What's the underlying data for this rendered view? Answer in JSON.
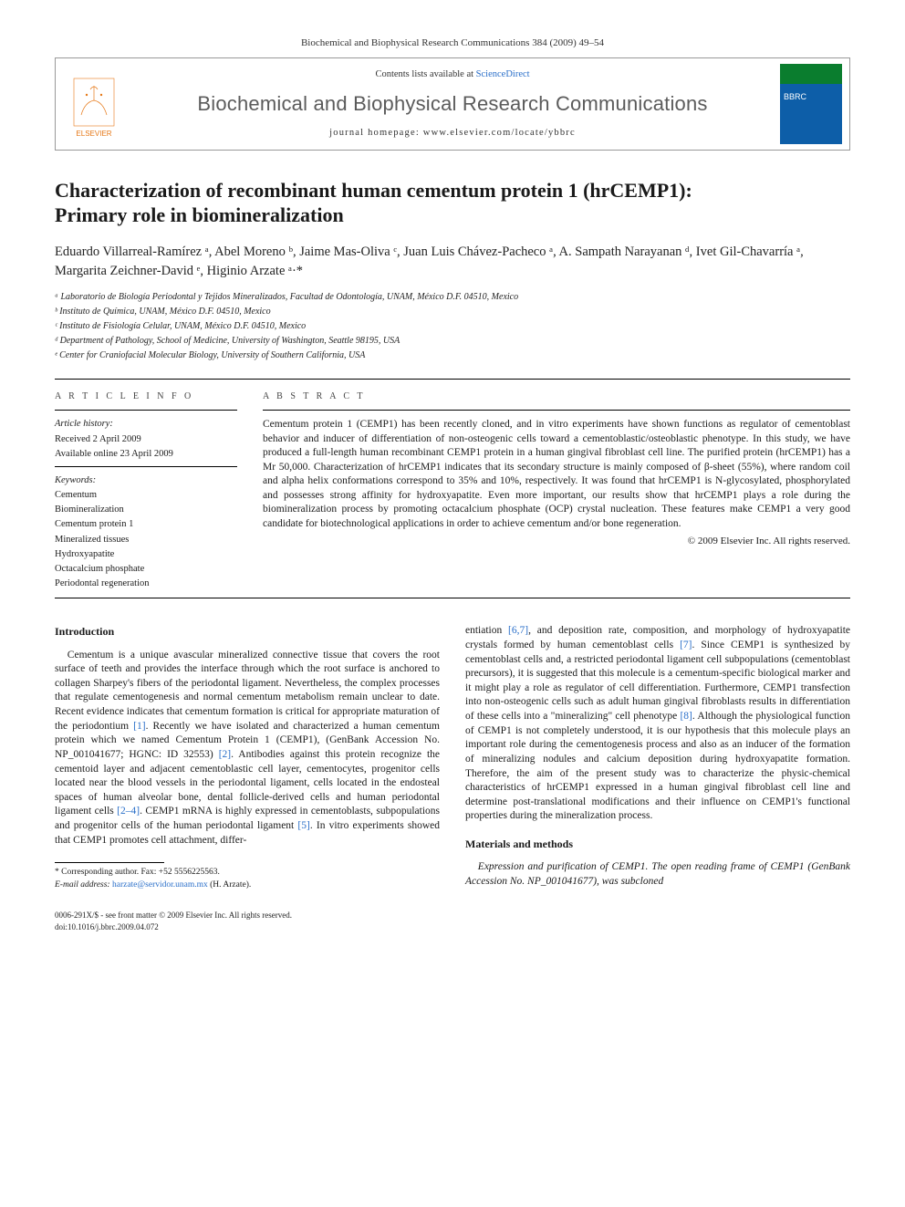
{
  "header": {
    "citation": "Biochemical and Biophysical Research Communications 384 (2009) 49–54",
    "contents_prefix": "Contents lists available at ",
    "contents_link": "ScienceDirect",
    "journal": "Biochemical and Biophysical Research Communications",
    "homepage_prefix": "journal homepage: ",
    "homepage": "www.elsevier.com/locate/ybbrc",
    "publisher": "ELSEVIER"
  },
  "article": {
    "title_line1": "Characterization of recombinant human cementum protein 1 (hrCEMP1):",
    "title_line2": "Primary role in biomineralization",
    "authors_html": "Eduardo Villarreal-Ramírez ᵃ, Abel Moreno ᵇ, Jaime Mas-Oliva ᶜ, Juan Luis Chávez-Pacheco ᵃ, A. Sampath Narayanan ᵈ, Ivet Gil-Chavarría ᵃ, Margarita Zeichner-David ᵉ, Higinio Arzate ᵃ·*",
    "affiliations": [
      "ᵃ Laboratorio de Biología Periodontal y Tejidos Mineralizados, Facultad de Odontología, UNAM, México D.F. 04510, Mexico",
      "ᵇ Instituto de Química, UNAM, México D.F. 04510, Mexico",
      "ᶜ Instituto de Fisiología Celular, UNAM, México D.F. 04510, Mexico",
      "ᵈ Department of Pathology, School of Medicine, University of Washington, Seattle 98195, USA",
      "ᵉ Center for Craniofacial Molecular Biology, University of Southern California, USA"
    ]
  },
  "info": {
    "head": "A R T I C L E   I N F O",
    "history_label": "Article history:",
    "received": "Received 2 April 2009",
    "available": "Available online 23 April 2009",
    "kw_label": "Keywords:",
    "keywords": [
      "Cementum",
      "Biomineralization",
      "Cementum protein 1",
      "Mineralized tissues",
      "Hydroxyapatite",
      "Octacalcium phosphate",
      "Periodontal regeneration"
    ]
  },
  "abstract": {
    "head": "A B S T R A C T",
    "text": "Cementum protein 1 (CEMP1) has been recently cloned, and in vitro experiments have shown functions as regulator of cementoblast behavior and inducer of differentiation of non-osteogenic cells toward a cementoblastic/osteoblastic phenotype. In this study, we have produced a full-length human recombinant CEMP1 protein in a human gingival fibroblast cell line. The purified protein (hrCEMP1) has a Mr 50,000. Characterization of hrCEMP1 indicates that its secondary structure is mainly composed of β-sheet (55%), where random coil and alpha helix conformations correspond to 35% and 10%, respectively. It was found that hrCEMP1 is N-glycosylated, phosphorylated and possesses strong affinity for hydroxyapatite. Even more important, our results show that hrCEMP1 plays a role during the biomineralization process by promoting octacalcium phosphate (OCP) crystal nucleation. These features make CEMP1 a very good candidate for biotechnological applications in order to achieve cementum and/or bone regeneration.",
    "copyright": "© 2009 Elsevier Inc. All rights reserved."
  },
  "body": {
    "intro_head": "Introduction",
    "intro_p1": "Cementum is a unique avascular mineralized connective tissue that covers the root surface of teeth and provides the interface through which the root surface is anchored to collagen Sharpey's fibers of the periodontal ligament. Nevertheless, the complex processes that regulate cementogenesis and normal cementum metabolism remain unclear to date. Recent evidence indicates that cementum formation is critical for appropriate maturation of the periodontium [1]. Recently we have isolated and characterized a human cementum protein which we named Cementum Protein 1 (CEMP1), (GenBank Accession No. NP_001041677; HGNC: ID 32553) [2]. Antibodies against this protein recognize the cementoid layer and adjacent cementoblastic cell layer, cementocytes, progenitor cells located near the blood vessels in the periodontal ligament, cells located in the endosteal spaces of human alveolar bone, dental follicle-derived cells and human periodontal ligament cells [2–4]. CEMP1 mRNA is highly expressed in cementoblasts, subpopulations and progenitor cells of the human periodontal ligament [5]. In vitro experiments showed that CEMP1 promotes cell attachment, differ-",
    "intro_p2": "entiation [6,7], and deposition rate, composition, and morphology of hydroxyapatite crystals formed by human cementoblast cells [7]. Since CEMP1 is synthesized by cementoblast cells and, a restricted periodontal ligament cell subpopulations (cementoblast precursors), it is suggested that this molecule is a cementum-specific biological marker and it might play a role as regulator of cell differentiation. Furthermore, CEMP1 transfection into non-osteogenic cells such as adult human gingival fibroblasts results in differentiation of these cells into a \"mineralizing\" cell phenotype [8]. Although the physiological function of CEMP1 is not completely understood, it is our hypothesis that this molecule plays an important role during the cementogenesis process and also as an inducer of the formation of mineralizing nodules and calcium deposition during hydroxyapatite formation. Therefore, the aim of the present study was to characterize the physic-chemical characteristics of hrCEMP1 expressed in a human gingival fibroblast cell line and determine post-translational modifications and their influence on CEMP1's functional properties during the mineralization process.",
    "mm_head": "Materials and methods",
    "mm_p1": "Expression and purification of CEMP1. The open reading frame of CEMP1 (GenBank Accession No. NP_001041677), was subcloned"
  },
  "corr": {
    "star": "* Corresponding author. Fax: +52 5556225563.",
    "email_label": "E-mail address:",
    "email": "harzate@servidor.unam.mx",
    "email_who": "(H. Arzate)."
  },
  "footer": {
    "l1": "0006-291X/$ - see front matter © 2009 Elsevier Inc. All rights reserved.",
    "l2": "doi:10.1016/j.bbrc.2009.04.072"
  },
  "colors": {
    "link": "#2a6fc9",
    "publisher": "#e67817",
    "journal_name": "#5b5b5b"
  }
}
